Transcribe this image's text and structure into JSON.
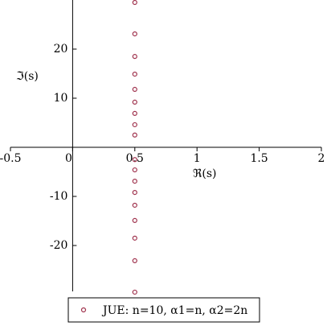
{
  "chart_data": {
    "type": "scatter",
    "xlabel": "ℜ(s)",
    "ylabel": "ℑ(s)",
    "xlim": [
      -0.5,
      2
    ],
    "ylim": [
      -30,
      30
    ],
    "xticks": [
      -0.5,
      0,
      0.5,
      1,
      1.5,
      2
    ],
    "yticks": [
      -20,
      -10,
      10,
      20
    ],
    "series": [
      {
        "name": "JUE:    n=10, α1=n,  α2=2n",
        "color": "#a0334e",
        "x": [
          0.5,
          0.5,
          0.5,
          0.5,
          0.5,
          0.5,
          0.5,
          0.5,
          0.5,
          0.5,
          0.5,
          0.5,
          0.5,
          0.5,
          0.5,
          0.5,
          0.5,
          0.5
        ],
        "values": [
          29.5,
          23.1,
          18.5,
          14.9,
          11.8,
          9.2,
          6.9,
          4.6,
          2.5,
          -2.5,
          -4.6,
          -6.9,
          -9.2,
          -11.8,
          -14.9,
          -18.5,
          -23.1,
          -29.5
        ]
      }
    ]
  }
}
